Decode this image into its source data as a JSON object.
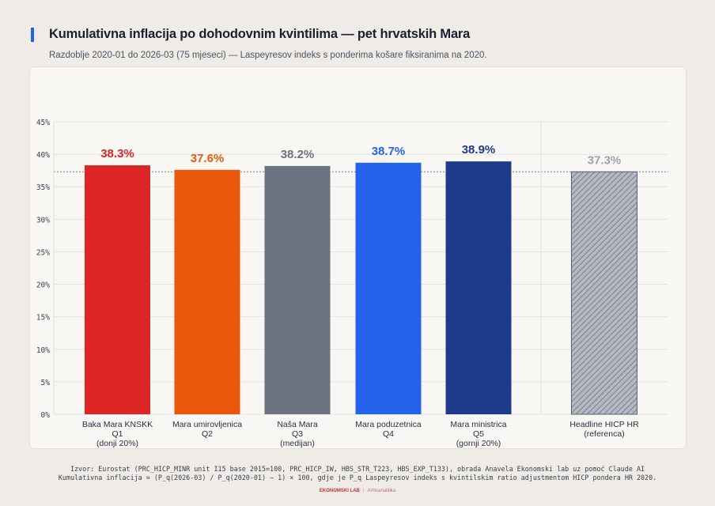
{
  "header": {
    "title": "Kumulativna inflacija po dohodovnim kvintilima — pet hrvatskih Mara",
    "subtitle": "Razdoblje 2020-01 do 2026-03 (75 mjeseci) — Laspeyresov indeks s ponderima košare fiksiranima na 2020."
  },
  "chart_data": {
    "type": "bar",
    "title": "Kumulativna inflacija po dohodovnim kvintilima — pet hrvatskih Mara",
    "xlabel": "",
    "ylabel": "",
    "ylim": [
      0,
      45
    ],
    "yticks": [
      0,
      5,
      10,
      15,
      20,
      25,
      30,
      35,
      40,
      45
    ],
    "ytick_labels": [
      "0%",
      "5%",
      "10%",
      "15%",
      "20%",
      "25%",
      "30%",
      "35%",
      "40%",
      "45%"
    ],
    "grid": true,
    "reference_line": {
      "value": 37.3,
      "style": "dotted"
    },
    "categories": [
      [
        "Baka Mara KNSKK",
        "Q1",
        "(donji 20%)"
      ],
      [
        "Mara umirovljenica",
        "Q2"
      ],
      [
        "Naša Mara",
        "Q3",
        "(medijan)"
      ],
      [
        "Mara poduzetnica",
        "Q4"
      ],
      [
        "Mara ministrica",
        "Q5",
        "(gornji 20%)"
      ],
      [
        "Headline HICP HR",
        "(referenca)"
      ]
    ],
    "values": [
      38.3,
      37.6,
      38.2,
      38.7,
      38.9,
      37.3
    ],
    "value_labels": [
      "38.3%",
      "37.6%",
      "38.2%",
      "38.7%",
      "38.9%",
      "37.3%"
    ],
    "colors": [
      "#dc2626",
      "#ea580c",
      "#6b7280",
      "#2563eb",
      "#1e3a8a",
      "#b4b8c2"
    ],
    "label_colors": [
      "#dc2626",
      "#ea580c",
      "#6b7280",
      "#2563eb",
      "#1e3a8a",
      "#9ca3af"
    ],
    "hatched": [
      false,
      false,
      false,
      false,
      false,
      true
    ]
  },
  "footer": {
    "source": "Izvor: Eurostat (PRC_HICP_MINR unit I15 base 2015=100, PRC_HICP_IW, HBS_STR_T223, HBS_EXP_T133), obrada Anavela Ekonomski lab uz pomoć Claude AI",
    "formula": "Kumulativna inflacija = (P_q(2026-03) / P_q(2020-01) − 1) × 100, gdje je P_q Laspeyresov indeks s kvintilskim ratio adjustmentom HICP pondera HR 2020.",
    "brand": "EKONOMSKI LAB",
    "brand_sub": "Arhivanalitika"
  }
}
